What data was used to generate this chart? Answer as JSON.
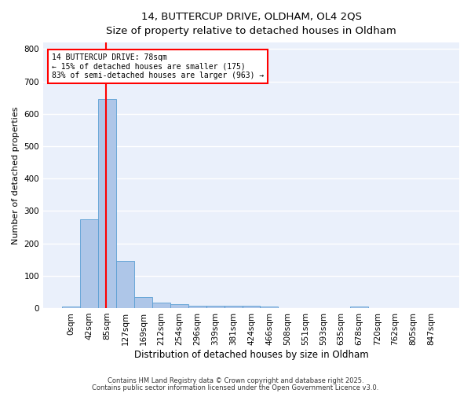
{
  "title_line1": "14, BUTTERCUP DRIVE, OLDHAM, OL4 2QS",
  "title_line2": "Size of property relative to detached houses in Oldham",
  "xlabel": "Distribution of detached houses by size in Oldham",
  "ylabel": "Number of detached properties",
  "bin_labels": [
    "0sqm",
    "42sqm",
    "85sqm",
    "127sqm",
    "169sqm",
    "212sqm",
    "254sqm",
    "296sqm",
    "339sqm",
    "381sqm",
    "424sqm",
    "466sqm",
    "508sqm",
    "551sqm",
    "593sqm",
    "635sqm",
    "678sqm",
    "720sqm",
    "762sqm",
    "805sqm",
    "847sqm"
  ],
  "bin_values": [
    5,
    275,
    645,
    145,
    35,
    18,
    12,
    8,
    8,
    7,
    6,
    5,
    0,
    0,
    0,
    0,
    5,
    0,
    0,
    0,
    0
  ],
  "bar_color": "#aec6e8",
  "bar_edge_color": "#5a9fd4",
  "red_line_x": 1.93,
  "annotation_text": "14 BUTTERCUP DRIVE: 78sqm\n← 15% of detached houses are smaller (175)\n83% of semi-detached houses are larger (963) →",
  "annotation_box_color": "white",
  "annotation_box_edge": "red",
  "ylim": [
    0,
    820
  ],
  "yticks": [
    0,
    100,
    200,
    300,
    400,
    500,
    600,
    700,
    800
  ],
  "footnote1": "Contains HM Land Registry data © Crown copyright and database right 2025.",
  "footnote2": "Contains public sector information licensed under the Open Government Licence v3.0.",
  "bg_color": "#eaf0fb",
  "grid_color": "white",
  "title1_fontsize": 9.5,
  "title2_fontsize": 8.5,
  "xlabel_fontsize": 8.5,
  "ylabel_fontsize": 8,
  "tick_fontsize": 7.5,
  "annot_fontsize": 7,
  "footnote_fontsize": 6
}
